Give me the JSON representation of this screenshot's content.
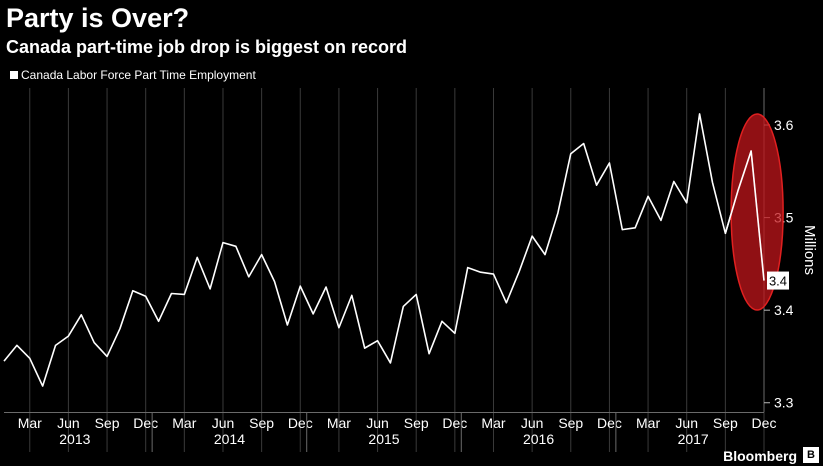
{
  "header": {
    "title": "Party is Over?",
    "subtitle": "Canada part-time job drop is biggest on record"
  },
  "legend": {
    "label": "Canada Labor Force Part Time Employment"
  },
  "brand": {
    "name": "Bloomberg",
    "icon": "bloomberg-logo-icon"
  },
  "colors": {
    "background": "#000000",
    "line": "#ffffff",
    "grid": "#3a3a3a",
    "highlight": "#c0161b"
  },
  "chart_data": {
    "type": "line",
    "title": "Party is Over?",
    "subtitle": "Canada part-time job drop is biggest on record",
    "ylabel": "Millions",
    "ylim": [
      3.29,
      3.64
    ],
    "yticks": [
      3.3,
      3.4,
      3.5,
      3.6
    ],
    "ytick_labels": [
      "3.3",
      "3.4",
      "3.5",
      "3.6"
    ],
    "grid": "vertical",
    "legend_position": "top-left",
    "last_value_label": "3.4",
    "x_start": "2013-01",
    "x_end": "2017-12",
    "month_labels": [
      "Mar",
      "Jun",
      "Sep",
      "Dec",
      "Mar",
      "Jun",
      "Sep",
      "Dec",
      "Mar",
      "Jun",
      "Sep",
      "Dec",
      "Mar",
      "Jun",
      "Sep",
      "Dec",
      "Mar",
      "Jun",
      "Sep",
      "Dec"
    ],
    "month_label_months": [
      "2013-03",
      "2013-06",
      "2013-09",
      "2013-12",
      "2014-03",
      "2014-06",
      "2014-09",
      "2014-12",
      "2015-03",
      "2015-06",
      "2015-09",
      "2015-12",
      "2016-03",
      "2016-06",
      "2016-09",
      "2016-12",
      "2017-03",
      "2017-06",
      "2017-09",
      "2017-12"
    ],
    "year_labels": [
      "2013",
      "2014",
      "2015",
      "2016",
      "2017"
    ],
    "series": [
      {
        "name": "Canada Labor Force Part Time Employment",
        "x": [
          "2013-01",
          "2013-02",
          "2013-03",
          "2013-04",
          "2013-05",
          "2013-06",
          "2013-07",
          "2013-08",
          "2013-09",
          "2013-10",
          "2013-11",
          "2013-12",
          "2014-01",
          "2014-02",
          "2014-03",
          "2014-04",
          "2014-05",
          "2014-06",
          "2014-07",
          "2014-08",
          "2014-09",
          "2014-10",
          "2014-11",
          "2014-12",
          "2015-01",
          "2015-02",
          "2015-03",
          "2015-04",
          "2015-05",
          "2015-06",
          "2015-07",
          "2015-08",
          "2015-09",
          "2015-10",
          "2015-11",
          "2015-12",
          "2016-01",
          "2016-02",
          "2016-03",
          "2016-04",
          "2016-05",
          "2016-06",
          "2016-07",
          "2016-08",
          "2016-09",
          "2016-10",
          "2016-11",
          "2016-12",
          "2017-01",
          "2017-02",
          "2017-03",
          "2017-04",
          "2017-05",
          "2017-06",
          "2017-07",
          "2017-08",
          "2017-09",
          "2017-10",
          "2017-11",
          "2017-12"
        ],
        "values": [
          3.345,
          3.362,
          3.348,
          3.318,
          3.362,
          3.372,
          3.395,
          3.365,
          3.35,
          3.38,
          3.421,
          3.415,
          3.388,
          3.418,
          3.417,
          3.457,
          3.423,
          3.473,
          3.469,
          3.436,
          3.46,
          3.431,
          3.384,
          3.426,
          3.396,
          3.425,
          3.381,
          3.416,
          3.359,
          3.367,
          3.343,
          3.404,
          3.417,
          3.353,
          3.388,
          3.375,
          3.446,
          3.441,
          3.439,
          3.408,
          3.442,
          3.48,
          3.46,
          3.505,
          3.569,
          3.58,
          3.535,
          3.559,
          3.487,
          3.489,
          3.523,
          3.497,
          3.539,
          3.516,
          3.612,
          3.538,
          3.483,
          3.53,
          3.572,
          3.432
        ]
      }
    ],
    "annotation": {
      "shape": "ellipse",
      "color": "#c0161b",
      "from": "2017-10",
      "to": "2017-12"
    }
  }
}
